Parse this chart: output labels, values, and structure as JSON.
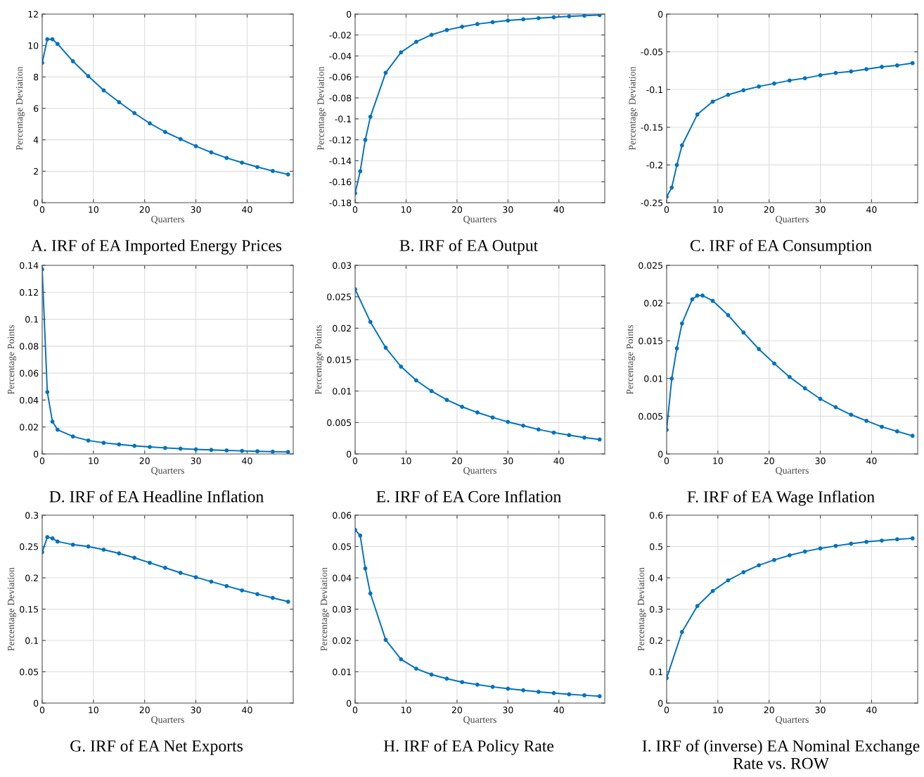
{
  "chart_data": [
    {
      "type": "line",
      "title": "A. IRF of EA Imported Energy Prices",
      "xlabel": "Quarters",
      "ylabel": "Percentage Deviation",
      "marker": "circle",
      "grid": true,
      "xlim": [
        0,
        49
      ],
      "xticks": [
        0,
        10,
        20,
        30,
        40
      ],
      "ylim": [
        0,
        12
      ],
      "yticks": [
        0,
        2,
        4,
        6,
        8,
        10,
        12
      ],
      "series": [
        {
          "color": "#0072bd",
          "x": [
            0,
            1,
            2,
            3,
            6,
            9,
            12,
            15,
            18,
            21,
            24,
            27,
            30,
            33,
            36,
            39,
            42,
            45,
            48
          ],
          "values": [
            8.9,
            10.4,
            10.4,
            10.1,
            9.0,
            8.05,
            7.15,
            6.4,
            5.7,
            5.05,
            4.5,
            4.05,
            3.6,
            3.2,
            2.85,
            2.55,
            2.27,
            2.02,
            1.8
          ]
        }
      ]
    },
    {
      "type": "line",
      "title": "B. IRF of EA Output",
      "xlabel": "Quarters",
      "ylabel": "Percentage Deviation",
      "marker": "circle",
      "grid": true,
      "xlim": [
        0,
        49
      ],
      "xticks": [
        0,
        10,
        20,
        30,
        40
      ],
      "ylim": [
        -0.18,
        0
      ],
      "yticks": [
        -0.18,
        -0.16,
        -0.14,
        -0.12,
        -0.1,
        -0.08,
        -0.06,
        -0.04,
        -0.02,
        0
      ],
      "series": [
        {
          "color": "#0072bd",
          "x": [
            0,
            1,
            2,
            3,
            6,
            9,
            12,
            15,
            18,
            21,
            24,
            27,
            30,
            33,
            36,
            39,
            42,
            45,
            48
          ],
          "values": [
            -0.171,
            -0.15,
            -0.12,
            -0.098,
            -0.056,
            -0.0365,
            -0.0265,
            -0.0198,
            -0.0152,
            -0.0121,
            -0.0095,
            -0.0077,
            -0.0061,
            -0.005,
            -0.0039,
            -0.003,
            -0.0022,
            -0.0015,
            -0.0009
          ]
        }
      ]
    },
    {
      "type": "line",
      "title": "C. IRF of EA Consumption",
      "xlabel": "Quarters",
      "ylabel": "Percentage Deviation",
      "marker": "circle",
      "grid": true,
      "xlim": [
        0,
        49
      ],
      "xticks": [
        0,
        10,
        20,
        30,
        40
      ],
      "ylim": [
        -0.25,
        0
      ],
      "yticks": [
        -0.25,
        -0.2,
        -0.15,
        -0.1,
        -0.05,
        0
      ],
      "series": [
        {
          "color": "#0072bd",
          "x": [
            0,
            1,
            2,
            3,
            6,
            9,
            12,
            15,
            18,
            21,
            24,
            27,
            30,
            33,
            36,
            39,
            42,
            45,
            48
          ],
          "values": [
            -0.242,
            -0.23,
            -0.2,
            -0.174,
            -0.133,
            -0.116,
            -0.107,
            -0.101,
            -0.096,
            -0.092,
            -0.088,
            -0.085,
            -0.081,
            -0.078,
            -0.076,
            -0.073,
            -0.07,
            -0.068,
            -0.065
          ]
        }
      ]
    },
    {
      "type": "line",
      "title": "D. IRF of EA Headline Inflation",
      "xlabel": "Quarters",
      "ylabel": "Percentage Points",
      "marker": "circle",
      "grid": true,
      "xlim": [
        0,
        49
      ],
      "xticks": [
        0,
        10,
        20,
        30,
        40
      ],
      "ylim": [
        0,
        0.14
      ],
      "yticks": [
        0,
        0.02,
        0.04,
        0.06,
        0.08,
        0.1,
        0.12,
        0.14
      ],
      "series": [
        {
          "color": "#0072bd",
          "x": [
            0,
            1,
            2,
            3,
            6,
            9,
            12,
            15,
            18,
            21,
            24,
            27,
            30,
            33,
            36,
            39,
            42,
            45,
            48
          ],
          "values": [
            0.137,
            0.046,
            0.024,
            0.018,
            0.013,
            0.01,
            0.0083,
            0.0071,
            0.006,
            0.0052,
            0.0045,
            0.0039,
            0.0034,
            0.003,
            0.0026,
            0.0023,
            0.002,
            0.0017,
            0.0015
          ]
        }
      ]
    },
    {
      "type": "line",
      "title": "E. IRF of EA Core Inflation",
      "xlabel": "Quarters",
      "ylabel": "Percentage Points",
      "marker": "circle",
      "grid": true,
      "xlim": [
        0,
        49
      ],
      "xticks": [
        0,
        10,
        20,
        30,
        40
      ],
      "ylim": [
        0,
        0.03
      ],
      "yticks": [
        0,
        0.005,
        0.01,
        0.015,
        0.02,
        0.025,
        0.03
      ],
      "series": [
        {
          "color": "#0072bd",
          "x": [
            0,
            3,
            6,
            9,
            12,
            15,
            18,
            21,
            24,
            27,
            30,
            33,
            36,
            39,
            42,
            45,
            48
          ],
          "values": [
            0.0262,
            0.021,
            0.0169,
            0.0139,
            0.0117,
            0.01,
            0.0086,
            0.0075,
            0.0066,
            0.0058,
            0.0051,
            0.0045,
            0.0039,
            0.0034,
            0.003,
            0.0026,
            0.0023
          ]
        }
      ]
    },
    {
      "type": "line",
      "title": "F. IRF of EA Wage Inflation",
      "xlabel": "Quarters",
      "ylabel": "Percentage Points",
      "marker": "circle",
      "grid": true,
      "xlim": [
        0,
        49
      ],
      "xticks": [
        0,
        10,
        20,
        30,
        40
      ],
      "ylim": [
        0,
        0.025
      ],
      "yticks": [
        0,
        0.005,
        0.01,
        0.015,
        0.02,
        0.025
      ],
      "series": [
        {
          "color": "#0072bd",
          "x": [
            0,
            1,
            2,
            3,
            5,
            6,
            7,
            9,
            12,
            15,
            18,
            21,
            24,
            27,
            30,
            33,
            36,
            39,
            42,
            45,
            48
          ],
          "values": [
            0.0032,
            0.01,
            0.014,
            0.0173,
            0.0205,
            0.021,
            0.021,
            0.0203,
            0.0184,
            0.0161,
            0.0139,
            0.012,
            0.0102,
            0.0087,
            0.0073,
            0.0062,
            0.0052,
            0.0044,
            0.0036,
            0.003,
            0.0024
          ]
        }
      ]
    },
    {
      "type": "line",
      "title": "G. IRF of EA Net Exports",
      "xlabel": "Quarters",
      "ylabel": "Percentage Deviation",
      "marker": "circle",
      "grid": true,
      "xlim": [
        0,
        49
      ],
      "xticks": [
        0,
        10,
        20,
        30,
        40
      ],
      "ylim": [
        0,
        0.3
      ],
      "yticks": [
        0,
        0.05,
        0.1,
        0.15,
        0.2,
        0.25,
        0.3
      ],
      "series": [
        {
          "color": "#0072bd",
          "x": [
            0,
            1,
            2,
            3,
            6,
            9,
            12,
            15,
            18,
            21,
            24,
            27,
            30,
            33,
            36,
            39,
            42,
            45,
            48
          ],
          "values": [
            0.241,
            0.265,
            0.263,
            0.258,
            0.253,
            0.25,
            0.245,
            0.239,
            0.232,
            0.224,
            0.216,
            0.208,
            0.201,
            0.194,
            0.187,
            0.18,
            0.174,
            0.168,
            0.162
          ]
        }
      ]
    },
    {
      "type": "line",
      "title": "H. IRF of EA Policy Rate",
      "xlabel": "Quarters",
      "ylabel": "Percentage Deviation",
      "marker": "circle",
      "grid": true,
      "xlim": [
        0,
        49
      ],
      "xticks": [
        0,
        10,
        20,
        30,
        40
      ],
      "ylim": [
        0,
        0.06
      ],
      "yticks": [
        0,
        0.01,
        0.02,
        0.03,
        0.04,
        0.05,
        0.06
      ],
      "series": [
        {
          "color": "#0072bd",
          "x": [
            0,
            1,
            2,
            3,
            6,
            9,
            12,
            15,
            18,
            21,
            24,
            27,
            30,
            33,
            36,
            39,
            42,
            45,
            48
          ],
          "values": [
            0.0553,
            0.0535,
            0.043,
            0.035,
            0.0202,
            0.014,
            0.011,
            0.0091,
            0.0078,
            0.0067,
            0.0059,
            0.0052,
            0.0046,
            0.0041,
            0.0036,
            0.0032,
            0.0028,
            0.0025,
            0.0022
          ]
        }
      ]
    },
    {
      "type": "line",
      "title": "I. IRF of (inverse) EA Nominal Exchange Rate vs. ROW",
      "xlabel": "Quarters",
      "ylabel": "Percentage Deviation",
      "marker": "circle",
      "grid": true,
      "xlim": [
        0,
        49
      ],
      "xticks": [
        0,
        10,
        20,
        30,
        40
      ],
      "ylim": [
        0,
        0.6
      ],
      "yticks": [
        0,
        0.1,
        0.2,
        0.3,
        0.4,
        0.5,
        0.6
      ],
      "series": [
        {
          "color": "#0072bd",
          "x": [
            0,
            3,
            6,
            9,
            12,
            15,
            18,
            21,
            24,
            27,
            30,
            33,
            36,
            39,
            42,
            45,
            48
          ],
          "values": [
            0.08,
            0.227,
            0.31,
            0.358,
            0.392,
            0.418,
            0.44,
            0.457,
            0.472,
            0.484,
            0.494,
            0.502,
            0.509,
            0.515,
            0.519,
            0.523,
            0.526
          ]
        }
      ]
    }
  ]
}
